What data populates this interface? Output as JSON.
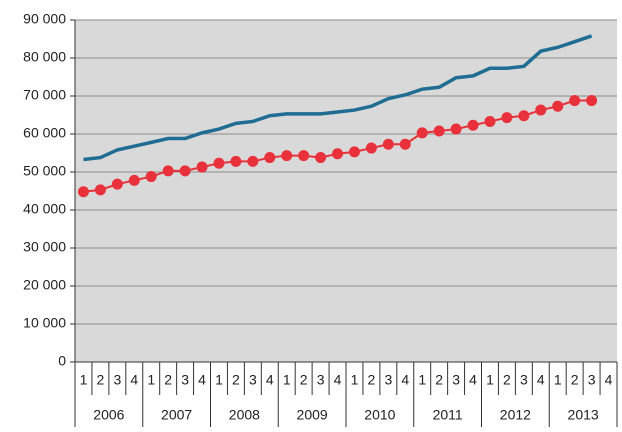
{
  "chart_data": {
    "type": "line",
    "categories": [
      "1",
      "2",
      "3",
      "4",
      "1",
      "2",
      "3",
      "4",
      "1",
      "2",
      "3",
      "4",
      "1",
      "2",
      "3",
      "4",
      "1",
      "2",
      "3",
      "4",
      "1",
      "2",
      "3",
      "4",
      "1",
      "2",
      "3",
      "4",
      "1",
      "2",
      "3",
      "4"
    ],
    "years": [
      "2006",
      "2007",
      "2008",
      "2009",
      "2010",
      "2011",
      "2012",
      "2013"
    ],
    "series": [
      {
        "color": "#1f6d92",
        "marker": false,
        "values": [
          53300,
          53800,
          55800,
          56800,
          57800,
          58800,
          58800,
          60300,
          61300,
          62800,
          63300,
          64800,
          65300,
          65300,
          65300,
          65800,
          66300,
          67300,
          69300,
          70300,
          71800,
          72300,
          74800,
          75300,
          77300,
          77300,
          77800,
          81800,
          82800,
          84300,
          85800,
          null
        ]
      },
      {
        "color": "#e8313a",
        "marker": true,
        "values": [
          44800,
          45300,
          46800,
          47800,
          48800,
          50300,
          50300,
          51300,
          52300,
          52800,
          52800,
          53800,
          54300,
          54300,
          53800,
          54800,
          55300,
          56300,
          57300,
          57300,
          60300,
          60800,
          61300,
          62300,
          63300,
          64300,
          64800,
          66300,
          67300,
          68800,
          68800,
          null
        ]
      }
    ],
    "ylim": [
      0,
      90000
    ],
    "yticks": [
      {
        "value": 0,
        "label": "0"
      },
      {
        "value": 10000,
        "label": "10 000"
      },
      {
        "value": 20000,
        "label": "20 000"
      },
      {
        "value": 30000,
        "label": "30 000"
      },
      {
        "value": 40000,
        "label": "40 000"
      },
      {
        "value": 50000,
        "label": "50 000"
      },
      {
        "value": 60000,
        "label": "60 000"
      },
      {
        "value": 70000,
        "label": "70 000"
      },
      {
        "value": 80000,
        "label": "80 000"
      },
      {
        "value": 90000,
        "label": "90 000"
      }
    ],
    "grid": true,
    "background": "#d9d9d9"
  }
}
